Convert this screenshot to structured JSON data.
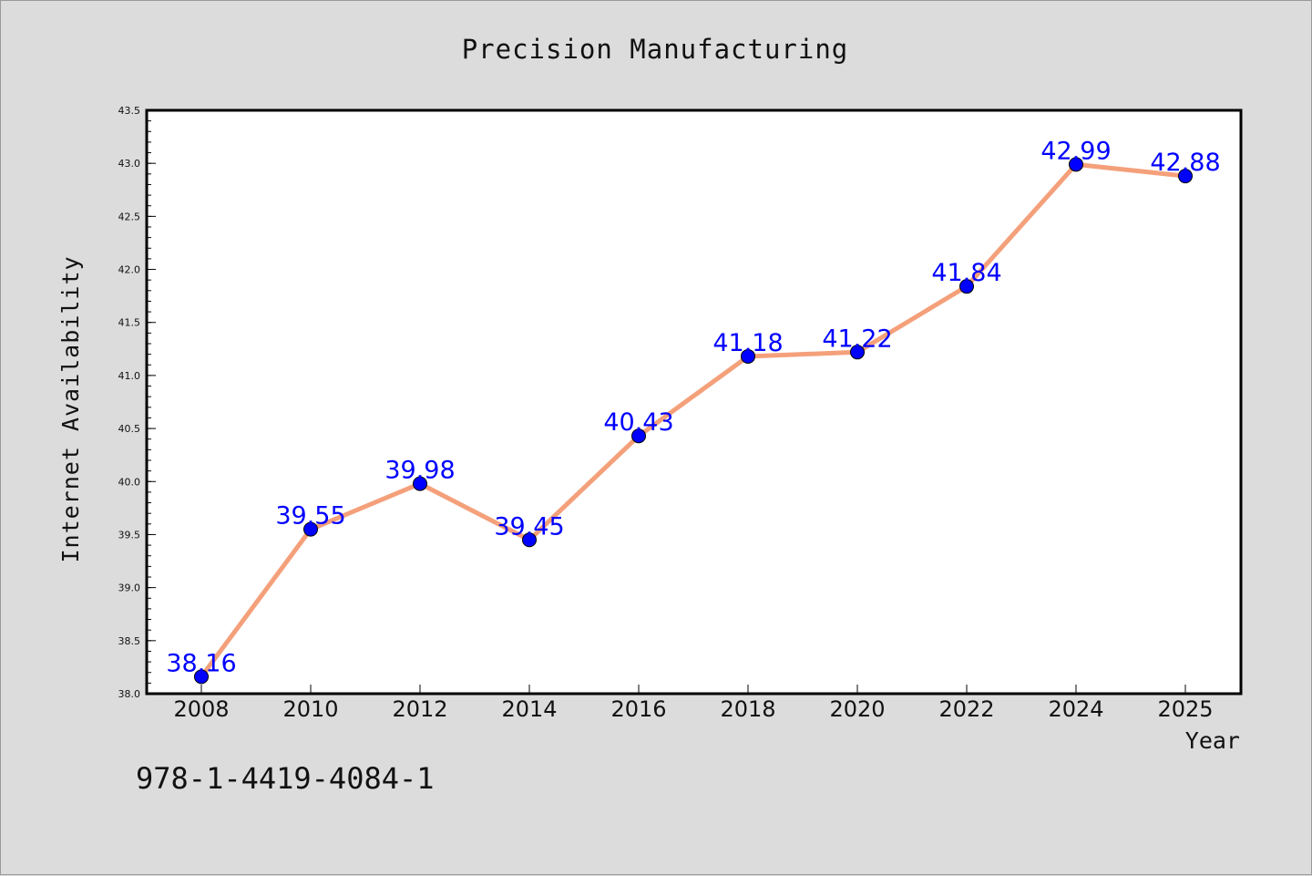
{
  "chart_data": {
    "type": "line",
    "title": "Precision Manufacturing",
    "xlabel": "Year",
    "ylabel": "Internet Availability",
    "x": [
      "2008",
      "2010",
      "2012",
      "2014",
      "2016",
      "2018",
      "2020",
      "2022",
      "2024",
      "2025"
    ],
    "series": [
      {
        "values": [
          38.16,
          39.55,
          39.98,
          39.45,
          40.43,
          41.18,
          41.22,
          41.84,
          42.99,
          42.88
        ],
        "labels": [
          "38.16",
          "39.55",
          "39.98",
          "39.45",
          "40.43",
          "41.18",
          "41.22",
          "41.84",
          "42.99",
          "42.88"
        ],
        "line_color": "#f4a07a",
        "marker_color": "#0000ff"
      }
    ],
    "ylim": [
      38.0,
      43.5
    ],
    "yticks": [
      "38.0",
      "38.5",
      "39.0",
      "39.5",
      "40.0",
      "40.5",
      "41.0",
      "41.5",
      "42.0",
      "42.5",
      "43.0",
      "43.5"
    ],
    "grid": false,
    "label_color": "#0000ff"
  },
  "annotation": "978-1-4419-4084-1"
}
